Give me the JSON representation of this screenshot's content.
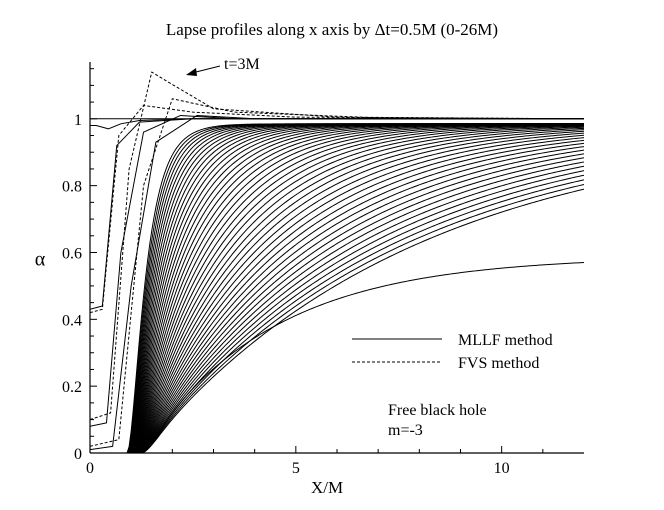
{
  "chart_data": {
    "type": "line",
    "title": "Lapse profiles along x axis by Δt=0.5M (0-26M)",
    "xlabel": "X/M",
    "ylabel": "α",
    "xlim": [
      0,
      12
    ],
    "ylim": [
      0,
      1.15
    ],
    "x_ticks": [
      0,
      5,
      10
    ],
    "y_ticks": [
      0,
      0.2,
      0.4,
      0.6,
      0.8,
      1
    ],
    "y_tick_labels": [
      "0",
      "0.2",
      "0.4",
      "0.6",
      "0.8",
      "1"
    ],
    "grid": false,
    "legend_position": "right",
    "legend": [
      {
        "label": "MLLF method",
        "style": "solid"
      },
      {
        "label": "FVS method",
        "style": "dashed"
      }
    ],
    "annotations": {
      "arrow_label": "t=3M",
      "arrow_label_position": {
        "x": 2.6,
        "y": 1.12
      },
      "arrow_tip": {
        "x": 1.95,
        "y": 1.105
      },
      "note_line1": "Free black hole",
      "note_line2": "m=-3"
    },
    "series": [
      {
        "style": "solid",
        "values": [
          [
            0,
            1
          ],
          [
            12,
            1
          ]
        ]
      },
      {
        "style": "solid",
        "values": [
          [
            0,
            0.98
          ],
          [
            0.15,
            0.98
          ],
          [
            0.45,
            0.97
          ],
          [
            0.75,
            0.985
          ],
          [
            1.2,
            0.995
          ],
          [
            2.5,
            1
          ],
          [
            12,
            1
          ]
        ]
      },
      {
        "style": "solid",
        "values": [
          [
            0,
            0.43
          ],
          [
            0.3,
            0.44
          ],
          [
            0.65,
            0.92
          ],
          [
            1.2,
            0.99
          ],
          [
            2.5,
            1
          ],
          [
            12,
            1
          ]
        ]
      },
      {
        "style": "solid",
        "values": [
          [
            0,
            0.08
          ],
          [
            0.4,
            0.09
          ],
          [
            0.75,
            0.6
          ],
          [
            1.3,
            0.96
          ],
          [
            2.2,
            1.01
          ],
          [
            3.5,
            1.0
          ],
          [
            12,
            1
          ]
        ]
      },
      {
        "style": "solid",
        "values": [
          [
            0,
            0.01
          ],
          [
            0.55,
            0.02
          ],
          [
            1.0,
            0.5
          ],
          [
            1.6,
            0.93
          ],
          [
            2.6,
            1.01
          ],
          [
            4.0,
            1.0
          ],
          [
            12,
            1
          ]
        ]
      },
      {
        "style": "dashed",
        "values": [
          [
            0,
            0.42
          ],
          [
            0.3,
            0.43
          ],
          [
            0.7,
            0.95
          ],
          [
            1.3,
            1.04
          ],
          [
            2.5,
            1.02
          ],
          [
            5,
            1.005
          ],
          [
            12,
            1
          ]
        ]
      },
      {
        "style": "dashed",
        "values": [
          [
            0,
            0.1
          ],
          [
            0.5,
            0.12
          ],
          [
            0.95,
            0.85
          ],
          [
            1.5,
            1.14
          ],
          [
            1.9,
            1.11
          ],
          [
            3,
            1.03
          ],
          [
            6,
            1.005
          ],
          [
            12,
            1
          ]
        ]
      },
      {
        "style": "dashed",
        "values": [
          [
            0,
            0.02
          ],
          [
            0.7,
            0.04
          ],
          [
            1.3,
            0.8
          ],
          [
            2.0,
            1.06
          ],
          [
            3.5,
            1.02
          ],
          [
            7,
            1.003
          ],
          [
            12,
            1
          ]
        ]
      }
    ],
    "family": {
      "style": "solid",
      "description_count": 46,
      "x_samples": [
        0,
        12
      ],
      "asymptote_left": 0,
      "curves": [
        {
          "k": 0.6,
          "x0": 1.0,
          "yend": 0.99
        },
        {
          "k": 1.0,
          "x0": 1.1,
          "yend": 0.99
        }
      ]
    }
  }
}
